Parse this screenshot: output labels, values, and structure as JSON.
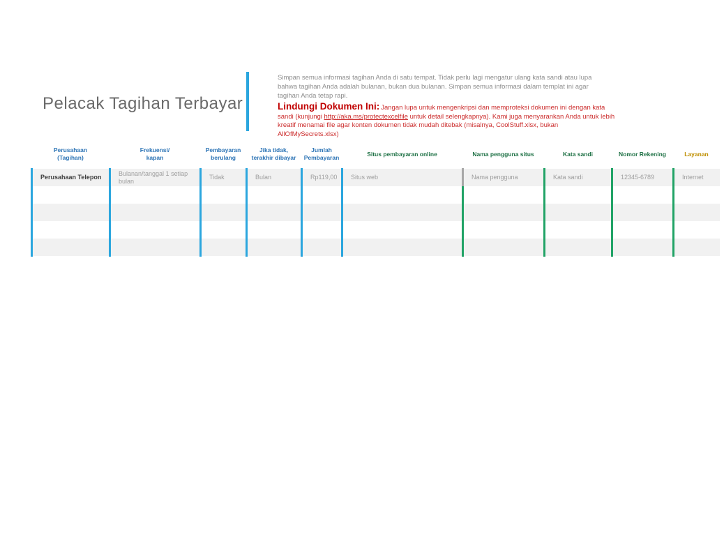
{
  "title": "Pelacak Tagihan Terbayar",
  "intro": "Simpan semua informasi tagihan Anda di satu tempat. Tidak perlu lagi mengatur ulang kata sandi atau lupa bahwa tagihan Anda adalah bulanan, bukan dua bulanan. Simpan semua informasi dalam templat ini agar tagihan Anda tetap rapi.",
  "protect": {
    "heading": "Lindungi Dokumen Ini:",
    "text_before_link": "Jangan lupa untuk mengenkripsi dan memproteksi dokumen ini dengan kata sandi (kunjungi ",
    "link_text": "http://aka.ms/protectexcelfile",
    "text_after_link": " untuk detail selengkapnya). Kami juga menyarankan Anda untuk lebih kreatif menamai file agar konten dokumen tidak mudah ditebak (misalnya, CoolStuff.xlsx, bukan AllOfMySecrets.xlsx)"
  },
  "table": {
    "headers": [
      {
        "label": "Perusahaan\n(Tagihan)",
        "group": "blue"
      },
      {
        "label": "Frekuensi/\nkapan",
        "group": "blue"
      },
      {
        "label": "Pembayaran\nberulang",
        "group": "blue"
      },
      {
        "label": "Jika tidak,\nterakhir dibayar",
        "group": "blue"
      },
      {
        "label": "Jumlah\nPembayaran",
        "group": "blue"
      },
      {
        "label": "Situs pembayaran online",
        "group": "green"
      },
      {
        "label": "Nama pengguna situs",
        "group": "green"
      },
      {
        "label": "Kata sandi",
        "group": "green"
      },
      {
        "label": "Nomor Rekening",
        "group": "green"
      },
      {
        "label": "Layanan",
        "group": "gold"
      }
    ],
    "sample_row": {
      "company": "Perusahaan Telepon",
      "frequency": "Bulanan/tanggal 1 setiap bulan",
      "recurring": "Tidak",
      "last_paid": "Bulan",
      "amount": "Rp119,00",
      "payment_site": "Situs web",
      "site_username": "Nama pengguna",
      "password": "Kata sandi",
      "account_number": "12345-6789",
      "service": "Internet"
    },
    "empty_row_count": 4
  },
  "colors": {
    "accent_blue": "#2BA6DE",
    "header_blue": "#2E75B6",
    "header_green": "#1E7145",
    "separator_green": "#21A366",
    "header_gold": "#BF8F00",
    "warning_red": "#C00000",
    "title_gray": "#6a6a6a",
    "row_stripe": "#f1f1f1"
  }
}
